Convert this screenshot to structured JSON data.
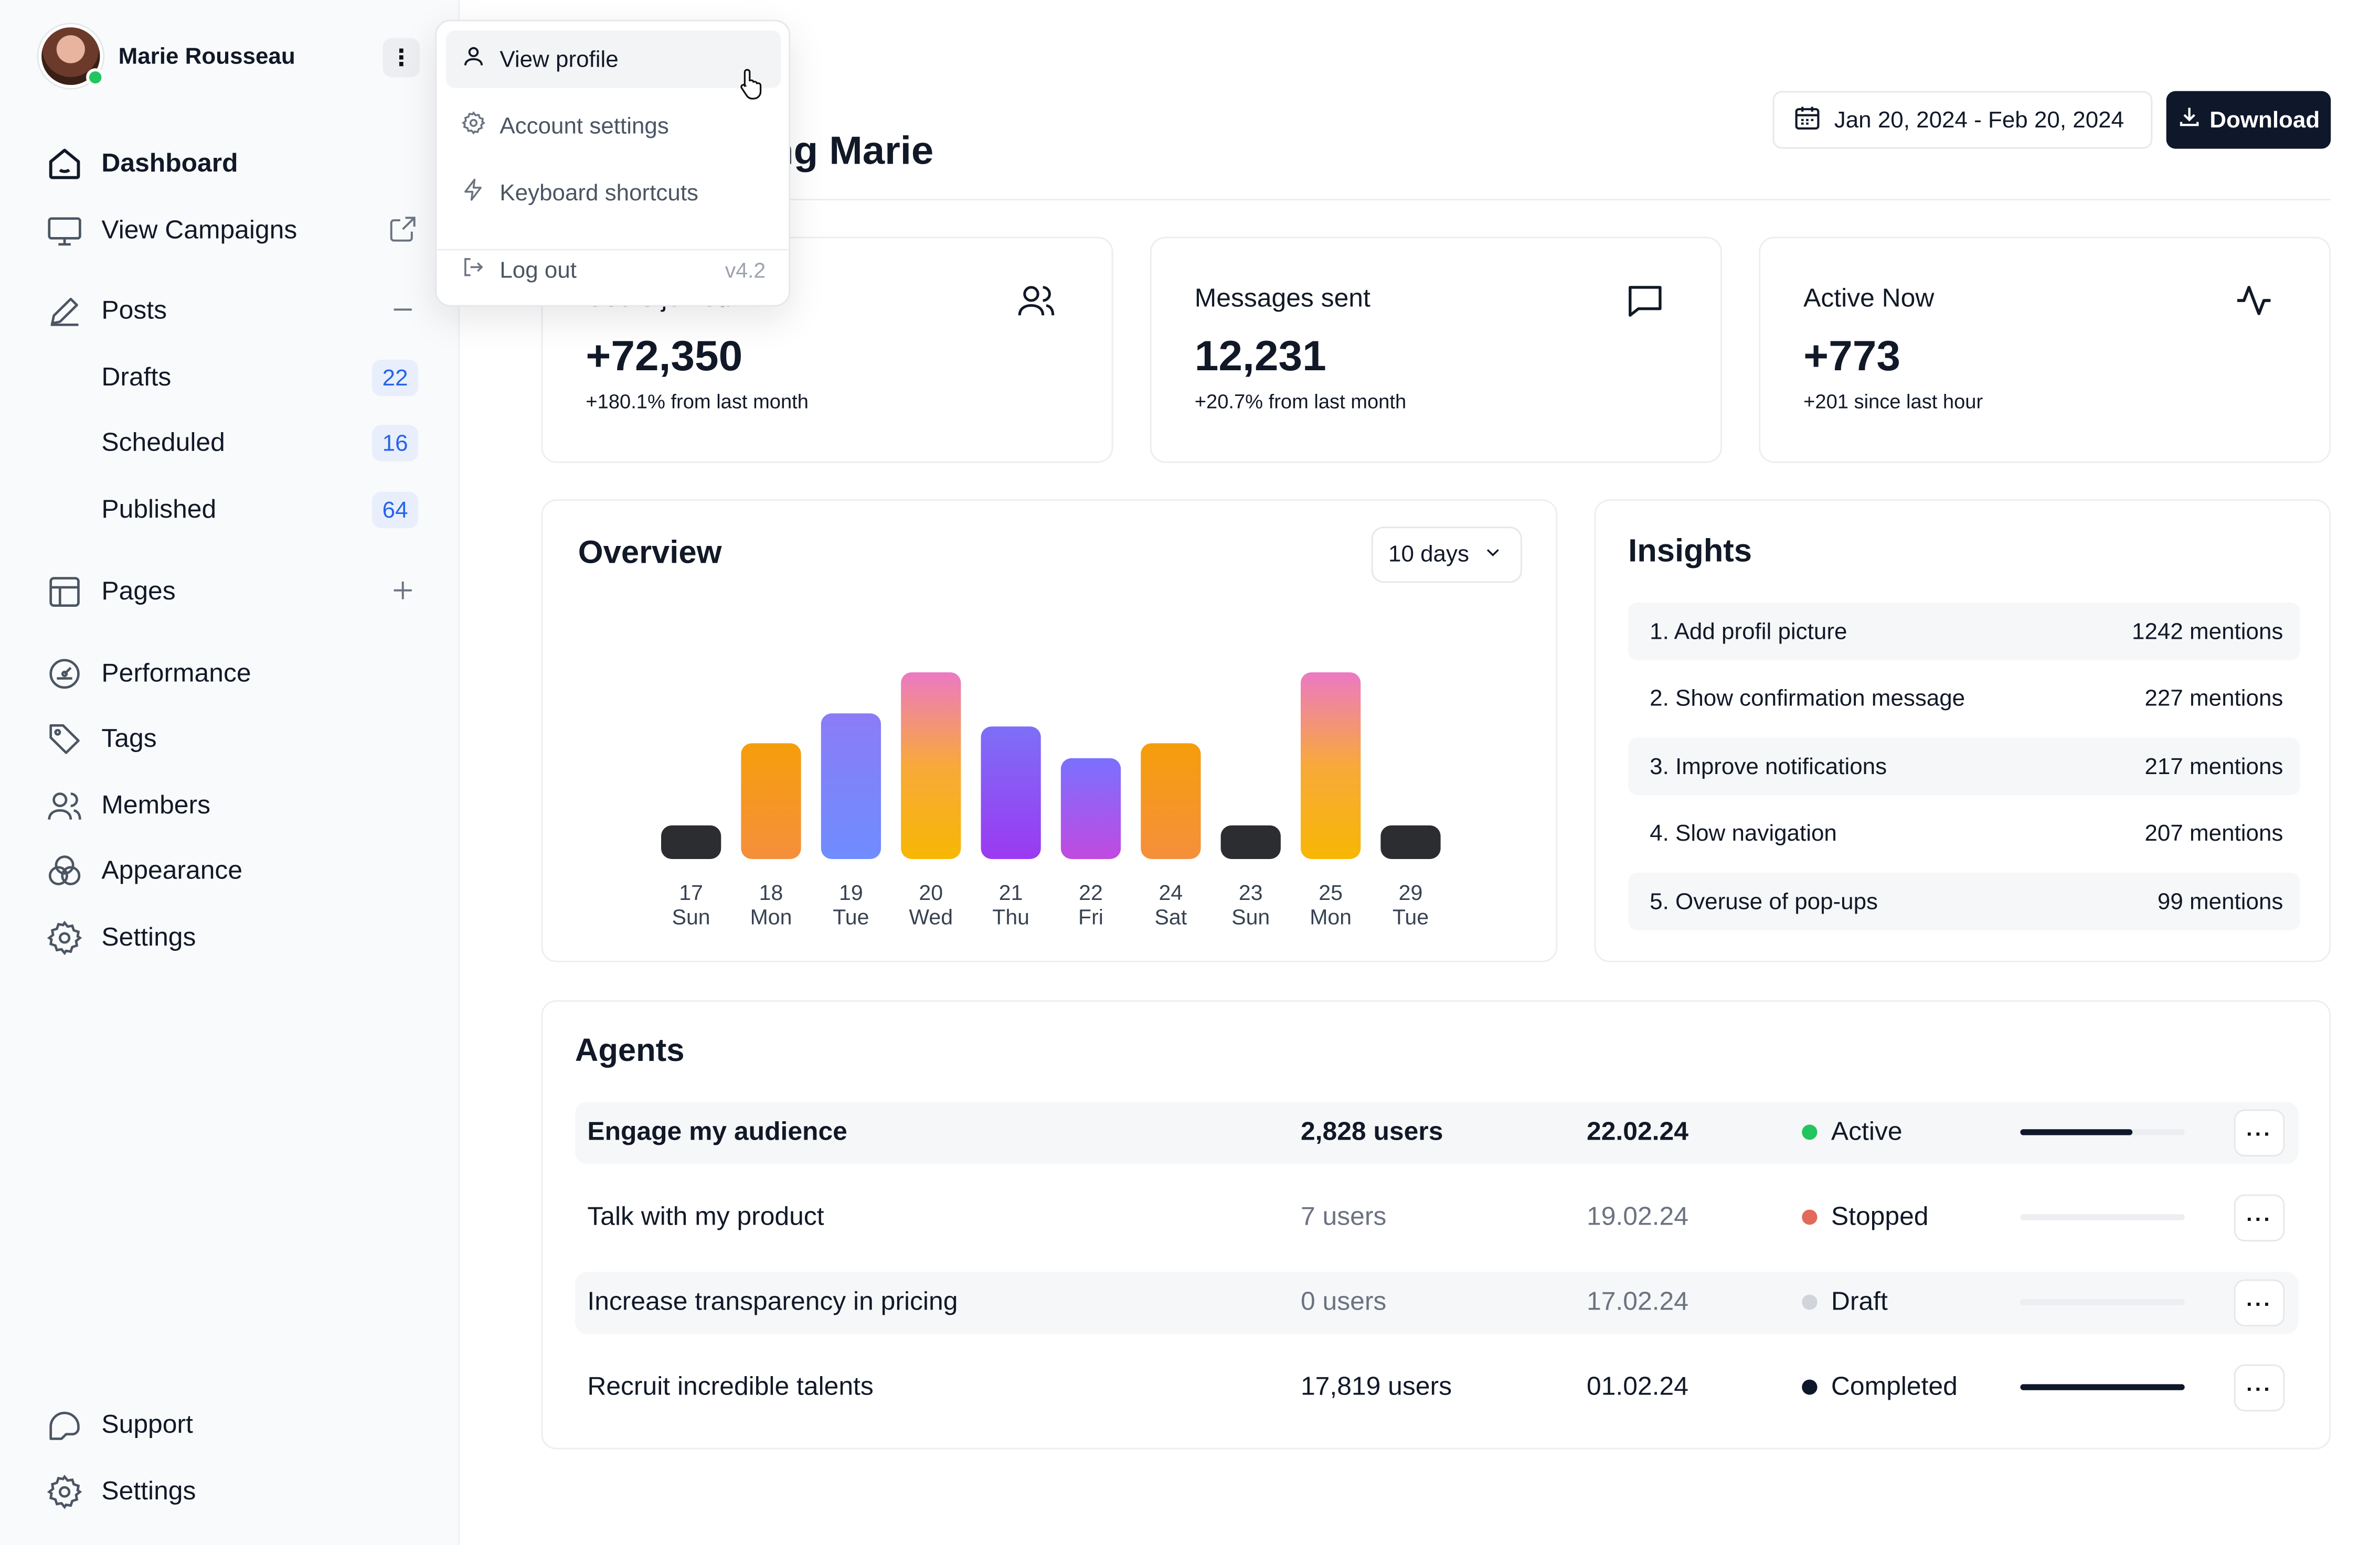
{
  "user": {
    "name": "Marie Rousseau",
    "status_color": "#22c55e"
  },
  "sidebar": {
    "items": [
      {
        "label": "Dashboard",
        "icon": "home-icon"
      },
      {
        "label": "View Campaigns",
        "icon": "monitor-icon",
        "trail_icon": "external-link-icon"
      },
      {
        "label": "Posts",
        "icon": "pen-icon",
        "trail_icon": "minus-icon"
      },
      {
        "label": "Pages",
        "icon": "layout-icon",
        "trail_icon": "plus-icon"
      },
      {
        "label": "Performance",
        "icon": "gauge-icon"
      },
      {
        "label": "Tags",
        "icon": "tag-icon"
      },
      {
        "label": "Members",
        "icon": "users-icon"
      },
      {
        "label": "Appearance",
        "icon": "palette-icon"
      },
      {
        "label": "Settings",
        "icon": "gear-icon"
      }
    ],
    "posts_sub": [
      {
        "label": "Drafts",
        "count": "22"
      },
      {
        "label": "Scheduled",
        "count": "16"
      },
      {
        "label": "Published",
        "count": "64"
      }
    ],
    "footer": [
      {
        "label": "Support",
        "icon": "support-icon"
      },
      {
        "label": "Settings",
        "icon": "gear-icon"
      }
    ]
  },
  "menu": {
    "items": [
      {
        "label": "View profile",
        "icon": "user-icon"
      },
      {
        "label": "Account settings",
        "icon": "gear-icon"
      },
      {
        "label": "Keyboard shortcuts",
        "icon": "bolt-icon"
      },
      {
        "label": "Log out",
        "icon": "logout-icon",
        "version": "v4.2"
      }
    ]
  },
  "header": {
    "greeting": "Good morning Marie",
    "date_range": "Jan 20, 2024 - Feb 20, 2024",
    "download_label": "Download"
  },
  "stats": [
    {
      "title": "Users joined",
      "value": "+72,350",
      "sub": "+180.1% from last month",
      "icon": "users-icon"
    },
    {
      "title": "Messages sent",
      "value": "12,231",
      "sub": "+20.7% from last month",
      "icon": "message-icon"
    },
    {
      "title": "Active Now",
      "value": "+773",
      "sub": "+201 since last hour",
      "icon": "activity-icon"
    }
  ],
  "overview": {
    "title": "Overview",
    "range_select": "10 days"
  },
  "chart_data": {
    "type": "bar",
    "categories": [
      {
        "day": "17",
        "wd": "Sun"
      },
      {
        "day": "18",
        "wd": "Mon"
      },
      {
        "day": "19",
        "wd": "Tue"
      },
      {
        "day": "20",
        "wd": "Wed"
      },
      {
        "day": "21",
        "wd": "Thu"
      },
      {
        "day": "22",
        "wd": "Fri"
      },
      {
        "day": "24",
        "wd": "Sat"
      },
      {
        "day": "23",
        "wd": "Sun"
      },
      {
        "day": "25",
        "wd": "Mon"
      },
      {
        "day": "29",
        "wd": "Tue"
      }
    ],
    "values": [
      18,
      62,
      78,
      100,
      71,
      54,
      62,
      18,
      100,
      18
    ],
    "bar_styles": [
      "dark",
      "orange",
      "indigo",
      "pink-orange",
      "violet",
      "violet-pink",
      "orange",
      "dark",
      "pink-orange",
      "dark"
    ],
    "colors": {
      "dark": [
        "#2b2d31",
        "#2b2d31"
      ],
      "orange": [
        "#f59e0b",
        "#f58f3c"
      ],
      "indigo": [
        "#8b7cf6",
        "#6f8cff"
      ],
      "pink-orange": [
        "#ec79c4",
        "#f8a93a",
        "#f7b704"
      ],
      "violet": [
        "#7d6ff7",
        "#9b39f2"
      ],
      "violet-pink": [
        "#7a70ff",
        "#c14ae0"
      ]
    },
    "grid": false,
    "ylim": [
      0,
      100
    ]
  },
  "insights": {
    "title": "Insights",
    "rows": [
      {
        "label": "1. Add profil picture",
        "mentions": "1242 mentions"
      },
      {
        "label": "2. Show confirmation message",
        "mentions": "227 mentions"
      },
      {
        "label": "3. Improve notifications",
        "mentions": "217 mentions"
      },
      {
        "label": "4. Slow navigation",
        "mentions": "207 mentions"
      },
      {
        "label": "5. Overuse of pop-ups",
        "mentions": "99 mentions"
      }
    ]
  },
  "agents": {
    "title": "Agents",
    "rows": [
      {
        "name": "Engage my audience",
        "users": "2,828 users",
        "date": "22.02.24",
        "status": "Active",
        "status_color": "#22c55e",
        "progress": 0.68,
        "emphasis": "strong"
      },
      {
        "name": "Talk with my product",
        "users": "7 users",
        "date": "19.02.24",
        "status": "Stopped",
        "status_color": "#e26a5a",
        "progress": 0,
        "emphasis": "muted"
      },
      {
        "name": "Increase transparency in pricing",
        "users": "0 users",
        "date": "17.02.24",
        "status": "Draft",
        "status_color": "#d1d5db",
        "progress": 0,
        "emphasis": "muted"
      },
      {
        "name": "Recruit incredible talents",
        "users": "17,819 users",
        "date": "01.02.24",
        "status": "Completed",
        "status_color": "#0f172a",
        "progress": 1.0,
        "emphasis": "normal"
      }
    ]
  }
}
